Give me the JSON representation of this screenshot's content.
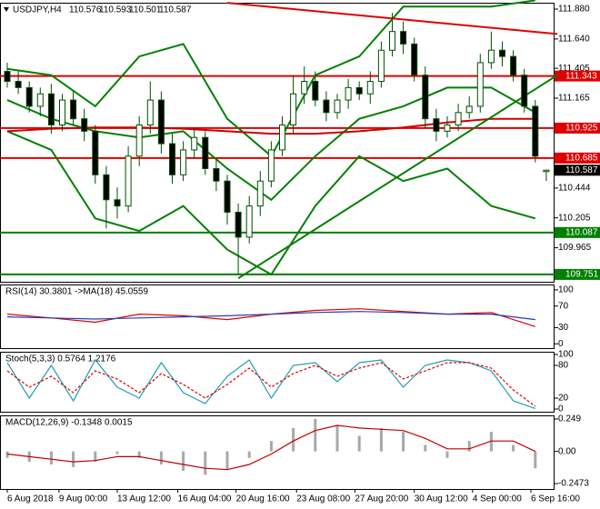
{
  "chart_data": [
    {
      "type": "candlestick",
      "title": "USDJPY,H4",
      "quote": [
        110.576,
        110.593,
        110.501,
        110.587
      ],
      "ylim": [
        109.692,
        111.931
      ],
      "yticks": [
        {
          "value": 111.88,
          "label": "111.880"
        },
        {
          "value": 111.64,
          "label": "111.640"
        },
        111.405,
        111.165,
        110.444,
        110.205,
        109.965
      ],
      "xticks": [
        {
          "value": 0,
          "label": "6 Aug 2018"
        },
        {
          "value": 4.7,
          "label": "9 Aug 00:00"
        },
        {
          "value": 10,
          "label": "13 Aug 12:00"
        },
        {
          "value": 15.5,
          "label": "16 Aug 04:00"
        },
        {
          "value": 20.8,
          "label": "20 Aug 16:00"
        },
        {
          "value": 26.3,
          "label": "23 Aug 08:00"
        },
        {
          "value": 31.6,
          "label": "27 Aug 20:00"
        },
        {
          "value": 37,
          "label": "30 Aug 12:00"
        },
        {
          "value": 42.3,
          "label": "4 Sep 00:00"
        },
        {
          "value": 47.6,
          "label": "6 Sep 16:00"
        }
      ],
      "bull_color": "#ffffff",
      "bear_color": "#000000",
      "wick_color": "#005000",
      "open": [
        111.38,
        111.3,
        111.25,
        111.1,
        111.2,
        110.95,
        111.15,
        111.0,
        110.9,
        110.55,
        110.35,
        110.3,
        110.7,
        110.95,
        111.15,
        110.8,
        110.55,
        110.75,
        110.85,
        110.6,
        110.5,
        110.25,
        110.05,
        110.3,
        110.5,
        110.75,
        110.95,
        111.2,
        111.3,
        111.15,
        111.05,
        111.15,
        111.25,
        111.2,
        111.3,
        111.55,
        111.7,
        111.6,
        111.35,
        111.0,
        110.9,
        110.95,
        111.05,
        111.1,
        111.45,
        111.55,
        111.5,
        111.35,
        111.1,
        110.576
      ],
      "high": [
        111.45,
        111.38,
        111.3,
        111.25,
        111.28,
        111.2,
        111.22,
        111.08,
        110.95,
        110.62,
        110.45,
        110.78,
        111.02,
        111.3,
        111.22,
        110.88,
        110.82,
        110.92,
        110.9,
        110.68,
        110.55,
        110.32,
        110.38,
        110.58,
        110.82,
        111.02,
        111.35,
        111.42,
        111.38,
        111.22,
        111.2,
        111.32,
        111.3,
        111.38,
        111.62,
        111.85,
        111.78,
        111.65,
        111.42,
        111.08,
        111.02,
        111.12,
        111.18,
        111.52,
        111.7,
        111.62,
        111.55,
        111.4,
        111.15,
        110.593
      ],
      "low": [
        111.25,
        111.2,
        111.05,
        111.02,
        110.88,
        110.9,
        110.95,
        110.82,
        110.48,
        110.12,
        110.2,
        110.25,
        110.62,
        110.88,
        110.72,
        110.48,
        110.5,
        110.68,
        110.55,
        110.42,
        110.15,
        109.75,
        110.0,
        110.22,
        110.45,
        110.7,
        110.88,
        111.12,
        111.1,
        110.98,
        111.0,
        111.08,
        111.15,
        111.12,
        111.25,
        111.5,
        111.52,
        111.3,
        110.92,
        110.82,
        110.85,
        110.9,
        111.0,
        111.05,
        111.4,
        111.42,
        111.3,
        111.05,
        110.65,
        110.501
      ],
      "close": [
        111.3,
        111.25,
        111.1,
        111.2,
        110.95,
        111.15,
        111.0,
        110.9,
        110.55,
        110.35,
        110.3,
        110.7,
        110.95,
        111.15,
        110.8,
        110.55,
        110.75,
        110.85,
        110.6,
        110.5,
        110.25,
        110.05,
        110.3,
        110.5,
        110.75,
        110.95,
        111.2,
        111.3,
        111.15,
        111.05,
        111.15,
        111.25,
        111.2,
        111.3,
        111.55,
        111.7,
        111.6,
        111.35,
        111.0,
        110.9,
        110.95,
        111.05,
        111.1,
        111.45,
        111.55,
        111.5,
        111.35,
        111.1,
        110.7,
        110.587
      ],
      "overlays": [
        {
          "color": "#008000",
          "x": [
            0,
            4,
            8,
            12,
            16,
            20,
            24,
            28,
            32,
            36,
            40,
            44,
            48
          ],
          "values": [
            111.4,
            111.35,
            111.1,
            111.5,
            111.6,
            111.0,
            110.7,
            111.35,
            111.5,
            111.9,
            111.9,
            111.9,
            111.95
          ]
        },
        {
          "color": "#008000",
          "x": [
            0,
            4,
            8,
            12,
            16,
            20,
            24,
            28,
            32,
            36,
            40,
            44,
            48
          ],
          "values": [
            110.9,
            110.75,
            110.2,
            110.1,
            110.3,
            109.95,
            109.75,
            110.3,
            110.7,
            110.5,
            110.6,
            110.3,
            110.2
          ]
        },
        {
          "color": "#008000",
          "x": [
            0,
            4,
            8,
            12,
            16,
            20,
            24,
            28,
            32,
            36,
            40,
            44,
            48
          ],
          "values": [
            111.15,
            111.0,
            110.9,
            110.85,
            110.9,
            110.6,
            110.35,
            110.7,
            111.0,
            111.1,
            111.25,
            111.25,
            111.05
          ]
        },
        {
          "color": "#cc0000",
          "x": [
            0,
            4,
            8,
            12,
            16,
            20,
            24,
            28,
            32,
            36,
            40,
            44,
            48
          ],
          "values": [
            110.9,
            110.92,
            110.93,
            110.93,
            110.92,
            110.9,
            110.88,
            110.88,
            110.9,
            110.93,
            110.97,
            111.0,
            111.0
          ]
        },
        {
          "color": "#e00000",
          "x": [
            20,
            50
          ],
          "values": [
            111.93,
            111.68
          ]
        },
        {
          "color": "#008000",
          "x": [
            21,
            50
          ],
          "values": [
            109.72,
            111.35
          ]
        }
      ],
      "levels": [
        {
          "value": 111.343,
          "color": "#e00000"
        },
        {
          "value": 110.925,
          "color": "#e00000"
        },
        {
          "value": 110.685,
          "color": "#e00000"
        },
        {
          "value": 110.087,
          "color": "#008000"
        },
        {
          "value": 109.751,
          "color": "#008000"
        }
      ],
      "last_price": 110.587
    },
    {
      "type": "line",
      "title": "RSI(14) 30.3801  ->MA(18) 45.0559",
      "ylim": [
        -8,
        110
      ],
      "yticks": [
        100,
        70,
        30,
        0
      ],
      "x": [
        0,
        4,
        8,
        12,
        16,
        20,
        24,
        28,
        32,
        36,
        40,
        44,
        48
      ],
      "series": [
        {
          "color": "#e00000",
          "values": [
            55,
            48,
            40,
            55,
            52,
            45,
            55,
            62,
            65,
            60,
            55,
            58,
            32
          ]
        },
        {
          "color": "#1f3fbf",
          "values": [
            50,
            48,
            46,
            48,
            50,
            52,
            55,
            58,
            60,
            58,
            55,
            55,
            45
          ]
        }
      ]
    },
    {
      "type": "line",
      "title": "Stoch(5,3,3) 0.5764 1.2176",
      "ylim": [
        -5,
        105
      ],
      "yticks": [
        100,
        80,
        20,
        0
      ],
      "x": [
        0,
        2,
        4,
        6,
        8,
        10,
        12,
        14,
        16,
        18,
        20,
        22,
        24,
        26,
        28,
        30,
        32,
        34,
        36,
        38,
        40,
        42,
        44,
        46,
        48
      ],
      "series": [
        {
          "color": "#20a0b0",
          "values": [
            85,
            20,
            80,
            15,
            90,
            40,
            20,
            85,
            30,
            10,
            60,
            90,
            20,
            80,
            85,
            50,
            85,
            90,
            40,
            80,
            90,
            85,
            70,
            15,
            1
          ]
        },
        {
          "color": "#e00000",
          "dashed": true,
          "values": [
            70,
            40,
            60,
            30,
            70,
            55,
            30,
            65,
            45,
            20,
            45,
            75,
            40,
            65,
            80,
            60,
            75,
            85,
            55,
            70,
            85,
            85,
            75,
            35,
            5
          ]
        }
      ]
    },
    {
      "type": "bar",
      "title": "MACD(12,26,9) -0.1348 0.0015",
      "ylim": [
        -0.289,
        0.277
      ],
      "yticks": [
        0.249,
        {
          "value": 0,
          "label": "0.00"
        },
        -0.2473
      ],
      "x": [
        0,
        2,
        4,
        6,
        8,
        10,
        12,
        14,
        16,
        18,
        20,
        22,
        24,
        26,
        28,
        30,
        32,
        34,
        36,
        38,
        40,
        42,
        44,
        46,
        48
      ],
      "color": "#a8a8a8",
      "values": [
        -0.05,
        -0.08,
        -0.1,
        -0.12,
        -0.08,
        -0.02,
        -0.05,
        -0.1,
        -0.15,
        -0.18,
        -0.14,
        -0.05,
        0.08,
        0.18,
        0.25,
        0.2,
        0.12,
        0.18,
        0.15,
        0.05,
        -0.05,
        0.08,
        0.15,
        0.05,
        -0.13
      ],
      "series": [
        {
          "color": "#c00000",
          "values": [
            -0.02,
            -0.04,
            -0.06,
            -0.08,
            -0.07,
            -0.04,
            -0.04,
            -0.07,
            -0.1,
            -0.13,
            -0.14,
            -0.1,
            -0.02,
            0.08,
            0.16,
            0.2,
            0.18,
            0.17,
            0.16,
            0.1,
            0.02,
            0.02,
            0.08,
            0.08,
            0.0
          ]
        }
      ]
    }
  ]
}
